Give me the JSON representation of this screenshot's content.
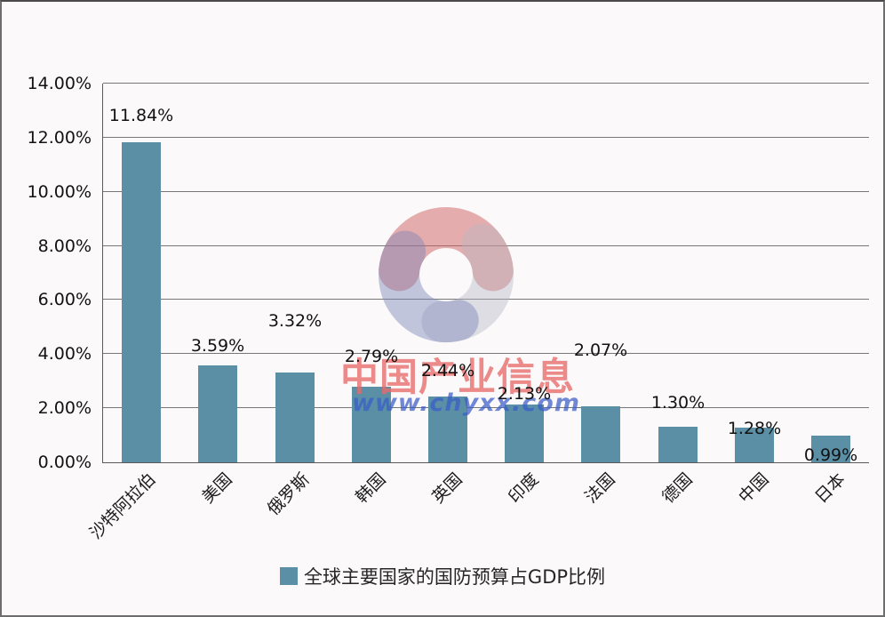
{
  "chart_data": {
    "type": "bar",
    "title": "",
    "categories": [
      "沙特阿拉伯",
      "美国",
      "俄罗斯",
      "韩国",
      "英国",
      "印度",
      "法国",
      "德国",
      "中国",
      "日本"
    ],
    "values": [
      11.84,
      3.59,
      3.32,
      2.79,
      2.44,
      2.13,
      2.07,
      1.3,
      1.28,
      0.99
    ],
    "data_labels": [
      "11.84%",
      "3.59%",
      "3.32%",
      "2.79%",
      "2.44%",
      "2.13%",
      "2.07%",
      "1.30%",
      "1.28%",
      "0.99%"
    ],
    "label_gaps": [
      20,
      12,
      48,
      24,
      19,
      2,
      53,
      17,
      -11,
      -32
    ],
    "y_ticks": [
      "0.00%",
      "2.00%",
      "4.00%",
      "6.00%",
      "8.00%",
      "10.00%",
      "12.00%",
      "14.00%"
    ],
    "y_tick_values": [
      0,
      2,
      4,
      6,
      8,
      10,
      12,
      14
    ],
    "ylim": [
      0,
      14
    ],
    "ylabel": "",
    "xlabel": "",
    "grid": true,
    "legend": "全球主要国家的国防预算占GDP比例",
    "legend_position": "bottom-center",
    "bar_color": "#5a8fa6"
  },
  "watermark": {
    "brand_text": "中国产业信息",
    "url_text": "www.chyxx.com",
    "brand_color": "#e96a6a",
    "url_color": "#3a5cc8",
    "logo_red": "#d06060",
    "logo_gray": "#b4b7c3",
    "logo_blue": "#7b85b5"
  }
}
